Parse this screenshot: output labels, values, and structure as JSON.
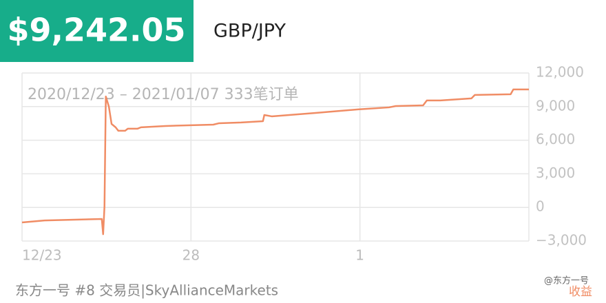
{
  "header": {
    "amount": "$9,242.05",
    "pair": "GBP/JPY"
  },
  "chart_data": {
    "type": "line",
    "subtitle": "2020/12/23 – 2021/01/07 333笔订单",
    "x": [
      0,
      0.67,
      2.36,
      2.4,
      2.44,
      2.48,
      2.57,
      2.65,
      2.77,
      2.85,
      3.05,
      3.13,
      3.42,
      3.52,
      4.24,
      5.66,
      5.82,
      6.48,
      7.13,
      7.17,
      7.39,
      8.72,
      9.94,
      10.86,
      11.06,
      11.87,
      11.98,
      12.38,
      13.3,
      13.4,
      14.46,
      14.54,
      15
    ],
    "series": [
      {
        "color": "#f08c64",
        "values": [
          -1340,
          -1160,
          -1030,
          -2390,
          80,
          9900,
          9000,
          7450,
          7150,
          6840,
          6840,
          7030,
          7030,
          7150,
          7270,
          7390,
          7510,
          7580,
          7700,
          8250,
          8130,
          8440,
          8750,
          8930,
          9050,
          9110,
          9550,
          9550,
          9730,
          10040,
          10100,
          10530,
          10530
        ]
      }
    ],
    "xlim": [
      0,
      15
    ],
    "ylim": [
      -3000,
      12000
    ],
    "xticks": [
      {
        "value": 0,
        "label": "12/23"
      },
      {
        "value": 5,
        "label": "28"
      },
      {
        "value": 10,
        "label": "1"
      }
    ],
    "yticks": [
      {
        "value": 12000,
        "label": "12,000"
      },
      {
        "value": 9000,
        "label": "9,000"
      },
      {
        "value": 6000,
        "label": "6,000"
      },
      {
        "value": 3000,
        "label": "3,000"
      },
      0,
      {
        "value": -3000,
        "label": "−3,000"
      }
    ],
    "grid": true
  },
  "footer": {
    "text": "东方一号 #8 交易员|SkyAllianceMarkets"
  },
  "watermark": {
    "handle": "@东方一号",
    "label": "收益"
  }
}
